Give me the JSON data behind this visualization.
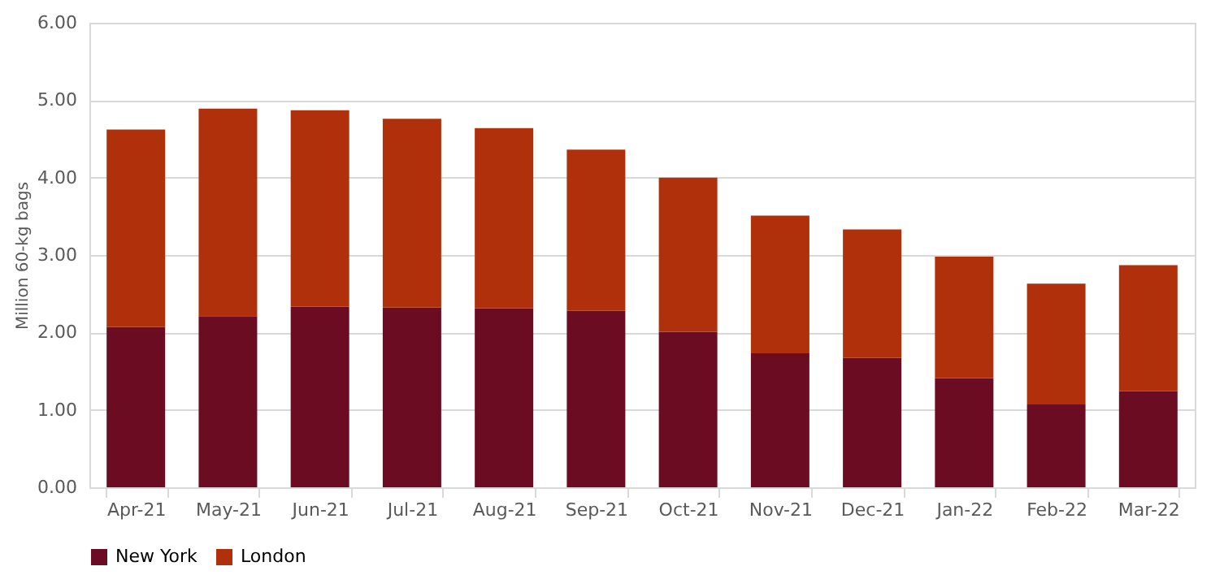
{
  "chart_data": {
    "type": "bar",
    "stacked": true,
    "ylabel": "Million 60-kg bags",
    "categories": [
      "Apr-21",
      "May-21",
      "Jun-21",
      "Jul-21",
      "Aug-21",
      "Sep-21",
      "Oct-21",
      "Nov-21",
      "Dec-21",
      "Jan-22",
      "Feb-22",
      "Mar-22"
    ],
    "series": [
      {
        "name": "New York",
        "color": "#6b0c22",
        "values": [
          2.07,
          2.21,
          2.33,
          2.32,
          2.31,
          2.28,
          2.01,
          1.73,
          1.67,
          1.41,
          1.07,
          1.24
        ]
      },
      {
        "name": "London",
        "color": "#b0300c",
        "values": [
          2.55,
          2.68,
          2.54,
          2.44,
          2.33,
          2.08,
          1.99,
          1.78,
          1.66,
          1.57,
          1.56,
          1.63
        ]
      }
    ],
    "ylim": [
      0,
      6
    ],
    "yticks": [
      {
        "value": 0,
        "label": "0.00"
      },
      {
        "value": 1,
        "label": "1.00"
      },
      {
        "value": 2,
        "label": "2.00"
      },
      {
        "value": 3,
        "label": "3.00"
      },
      {
        "value": 4,
        "label": "4.00"
      },
      {
        "value": 5,
        "label": "5.00"
      },
      {
        "value": 6,
        "label": "6.00"
      }
    ],
    "grid": "y",
    "legend": "bottom"
  }
}
